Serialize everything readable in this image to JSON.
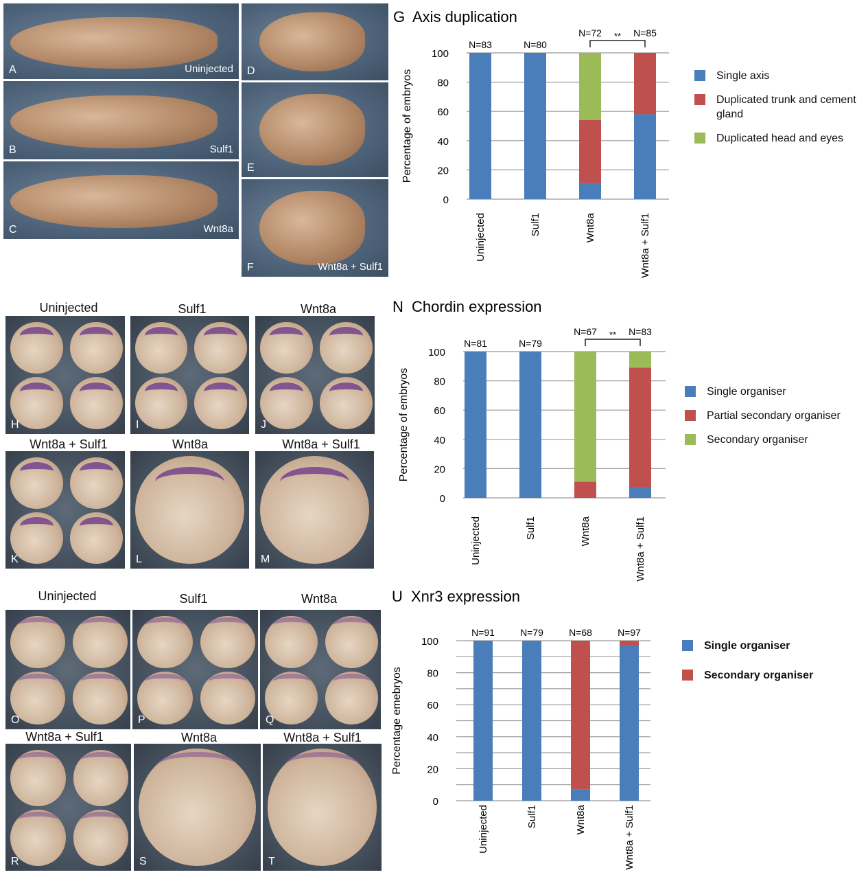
{
  "colors": {
    "single": "#4a7ebb",
    "red": "#c0504d",
    "green": "#9bbb59"
  },
  "top_panels": [
    {
      "letter": "A",
      "label": "Uninjected"
    },
    {
      "letter": "B",
      "label": "Sulf1"
    },
    {
      "letter": "C",
      "label": "Wnt8a"
    },
    {
      "letter": "D",
      "label": ""
    },
    {
      "letter": "E",
      "label": ""
    },
    {
      "letter": "F",
      "label": "Wnt8a + Sulf1"
    }
  ],
  "mid_titles": [
    "Uninjected",
    "Sulf1",
    "Wnt8a",
    "Wnt8a + Sulf1",
    "Wnt8a",
    "Wnt8a + Sulf1"
  ],
  "mid_letters": [
    "H",
    "I",
    "J",
    "K",
    "L",
    "M"
  ],
  "bot_titles": [
    "Uninjected",
    "Sulf1",
    "Wnt8a",
    "Wnt8a + Sulf1",
    "Wnt8a",
    "Wnt8a + Sulf1"
  ],
  "bot_letters": [
    "O",
    "P",
    "Q",
    "R",
    "S",
    "T"
  ],
  "chart_data": [
    {
      "type": "bar",
      "stacked": true,
      "panel": "G",
      "title": "Axis duplication",
      "ylabel": "Percentage of embryos",
      "ylim": [
        0,
        100
      ],
      "yticks": [
        0,
        20,
        40,
        60,
        80,
        100
      ],
      "grid": true,
      "legend_placement": "right",
      "categories": [
        "Uninjected",
        "Sulf1",
        "Wnt8a",
        "Wnt8a + Sulf1"
      ],
      "n_labels": [
        "N=83",
        "N=80",
        "N=72",
        "N=85"
      ],
      "significance": "**",
      "series": [
        {
          "name": "Single axis",
          "color": "#4a7ebb",
          "values": [
            100,
            100,
            11,
            58
          ]
        },
        {
          "name": "Duplicated trunk and cement gland",
          "color": "#c0504d",
          "values": [
            0,
            0,
            43,
            42
          ]
        },
        {
          "name": "Duplicated head and eyes",
          "color": "#9bbb59",
          "values": [
            0,
            0,
            46,
            0
          ]
        }
      ]
    },
    {
      "type": "bar",
      "stacked": true,
      "panel": "N",
      "title": "Chordin expression",
      "ylabel": "Percentage of embryos",
      "ylim": [
        0,
        100
      ],
      "yticks": [
        0,
        20,
        40,
        60,
        80,
        100
      ],
      "grid": true,
      "legend_placement": "right",
      "categories": [
        "Uninjected",
        "Sulf1",
        "Wnt8a",
        "Wnt8a + Sulf1"
      ],
      "n_labels": [
        "N=81",
        "N=79",
        "N=67",
        "N=83"
      ],
      "significance": "**",
      "series": [
        {
          "name": "Single organiser",
          "color": "#4a7ebb",
          "values": [
            100,
            100,
            0,
            7
          ]
        },
        {
          "name": "Partial secondary organiser",
          "color": "#c0504d",
          "values": [
            0,
            0,
            11,
            82
          ]
        },
        {
          "name": "Secondary organiser",
          "color": "#9bbb59",
          "values": [
            0,
            0,
            89,
            11
          ]
        }
      ]
    },
    {
      "type": "bar",
      "stacked": true,
      "panel": "U",
      "title": "Xnr3 expression",
      "ylabel": "Percentage emebryos",
      "ylim": [
        0,
        100
      ],
      "yticks": [
        0,
        20,
        40,
        60,
        80,
        100
      ],
      "grid": true,
      "legend_placement": "right",
      "categories": [
        "Uninjected",
        "Sulf1",
        "Wnt8a",
        "Wnt8a + Sulf1"
      ],
      "n_labels": [
        "N=91",
        "N=79",
        "N=68",
        "N=97"
      ],
      "significance": "",
      "series": [
        {
          "name": "Single organiser",
          "color": "#4a7ebb",
          "values": [
            100,
            100,
            7,
            97
          ]
        },
        {
          "name": "Secondary organiser",
          "color": "#c0504d",
          "values": [
            0,
            0,
            93,
            3
          ]
        }
      ]
    }
  ]
}
